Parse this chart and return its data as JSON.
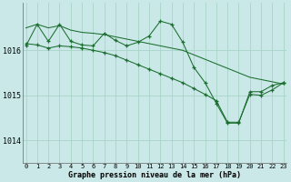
{
  "title": "Graphe pression niveau de la mer (hPa)",
  "bg_color": "#cbe8e8",
  "grid_color": "#a8d4c8",
  "line_color": "#1a6e2e",
  "x_labels": [
    "0",
    "1",
    "2",
    "3",
    "4",
    "5",
    "6",
    "7",
    "8",
    "9",
    "10",
    "11",
    "12",
    "13",
    "14",
    "15",
    "16",
    "17",
    "18",
    "19",
    "20",
    "21",
    "22",
    "23"
  ],
  "yticks": [
    1014,
    1015,
    1016
  ],
  "ylim": [
    1013.5,
    1017.05
  ],
  "xlim": [
    -0.3,
    23.3
  ],
  "line1": {
    "x": [
      0,
      1,
      2,
      3,
      4,
      5,
      6,
      7,
      8,
      9,
      10,
      11,
      12,
      13,
      14,
      15,
      16,
      17,
      18,
      19,
      20,
      21,
      22,
      23
    ],
    "y": [
      1016.5,
      1016.58,
      1016.5,
      1016.55,
      1016.45,
      1016.4,
      1016.38,
      1016.35,
      1016.3,
      1016.25,
      1016.2,
      1016.15,
      1016.1,
      1016.05,
      1016.0,
      1015.9,
      1015.8,
      1015.7,
      1015.6,
      1015.5,
      1015.4,
      1015.35,
      1015.3,
      1015.25
    ]
  },
  "line2": {
    "x": [
      0,
      1,
      2,
      3,
      4,
      5,
      6,
      7,
      8,
      9,
      10,
      11,
      12,
      13,
      14,
      15,
      16,
      17,
      18,
      19,
      20,
      21,
      22,
      23
    ],
    "y": [
      1016.1,
      1016.58,
      1016.2,
      1016.58,
      1016.2,
      1016.12,
      1016.1,
      1016.38,
      1016.22,
      1016.1,
      1016.18,
      1016.32,
      1016.65,
      1016.58,
      1016.18,
      1015.62,
      1015.28,
      1014.82,
      1014.38,
      1014.38,
      1015.08,
      1015.08,
      1015.22,
      1015.28
    ]
  },
  "line3": {
    "x": [
      0,
      1,
      2,
      3,
      4,
      5,
      6,
      7,
      8,
      9,
      10,
      11,
      12,
      13,
      14,
      15,
      16,
      17,
      18,
      19,
      20,
      21,
      22,
      23
    ],
    "y": [
      1016.15,
      1016.12,
      1016.05,
      1016.1,
      1016.08,
      1016.05,
      1016.0,
      1015.95,
      1015.88,
      1015.78,
      1015.68,
      1015.58,
      1015.48,
      1015.38,
      1015.28,
      1015.15,
      1015.02,
      1014.88,
      1014.4,
      1014.4,
      1015.02,
      1015.0,
      1015.12,
      1015.28
    ]
  }
}
